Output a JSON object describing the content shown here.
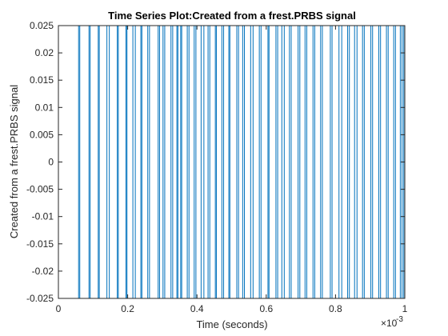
{
  "chart_data": {
    "type": "line",
    "title": "Time Series Plot:Created from a frest.PRBS signal",
    "xlabel": "Time (seconds)",
    "ylabel": "Created from a frest.PRBS signal",
    "x_exponent_label": "×10",
    "x_exponent_power": "-3",
    "xlim": [
      0,
      0.001
    ],
    "ylim": [
      -0.025,
      0.025
    ],
    "x_tick_values": [
      0,
      0.0002,
      0.0004,
      0.0006,
      0.0008,
      0.001
    ],
    "x_tick_labels": [
      "0",
      "0.2",
      "0.4",
      "0.6",
      "0.8",
      "1"
    ],
    "y_tick_values": [
      -0.025,
      -0.02,
      -0.015,
      -0.01,
      -0.005,
      0,
      0.005,
      0.01,
      0.015,
      0.02,
      0.025
    ],
    "y_tick_labels": [
      "-0.025",
      "-0.02",
      "-0.015",
      "-0.01",
      "-0.005",
      "0",
      "0.005",
      "0.01",
      "0.015",
      "0.02",
      "0.025"
    ],
    "grid": false,
    "series": [
      {
        "color": "#0072bd",
        "levels": [
          -0.025,
          0.025
        ],
        "initial_level": -0.025,
        "switch_times": [
          5.83e-05,
          6.17e-05,
          8.83e-05,
          9.17e-05,
          0.000115,
          0.000118,
          0.00014,
          0.000147,
          0.00017,
          0.000173,
          0.000195,
          0.000198,
          0.000215,
          0.000222,
          0.000238,
          0.000241,
          0.000258,
          0.000263,
          0.000288,
          0.000292,
          0.000302,
          0.000307,
          0.000325,
          0.00033,
          0.000342,
          0.000345,
          0.000353,
          0.000356,
          0.000372,
          0.000377,
          0.000392,
          0.000397,
          0.000412,
          0.00042,
          0.000432,
          0.000437,
          0.000453,
          0.000456,
          0.000472,
          0.000477,
          0.000492,
          0.000495,
          0.000515,
          0.00052,
          0.000532,
          0.000537,
          0.000555,
          0.000562,
          0.00058,
          0.000585,
          0.000605,
          0.000608,
          0.000628,
          0.000633,
          0.000645,
          0.000652,
          0.000667,
          0.000672,
          0.000692,
          0.000697,
          0.000712,
          0.000717,
          0.000735,
          0.00074,
          0.000757,
          0.000762,
          0.000785,
          0.00079,
          0.00081,
          0.000818,
          0.000835,
          0.00084,
          0.000855,
          0.000862,
          0.000878,
          0.000883,
          0.000902,
          0.000907,
          0.000925,
          0.00093,
          0.000947,
          0.000952,
          0.000968,
          0.000973,
          0.000987,
          0.000992,
          0.000997
        ]
      }
    ]
  }
}
